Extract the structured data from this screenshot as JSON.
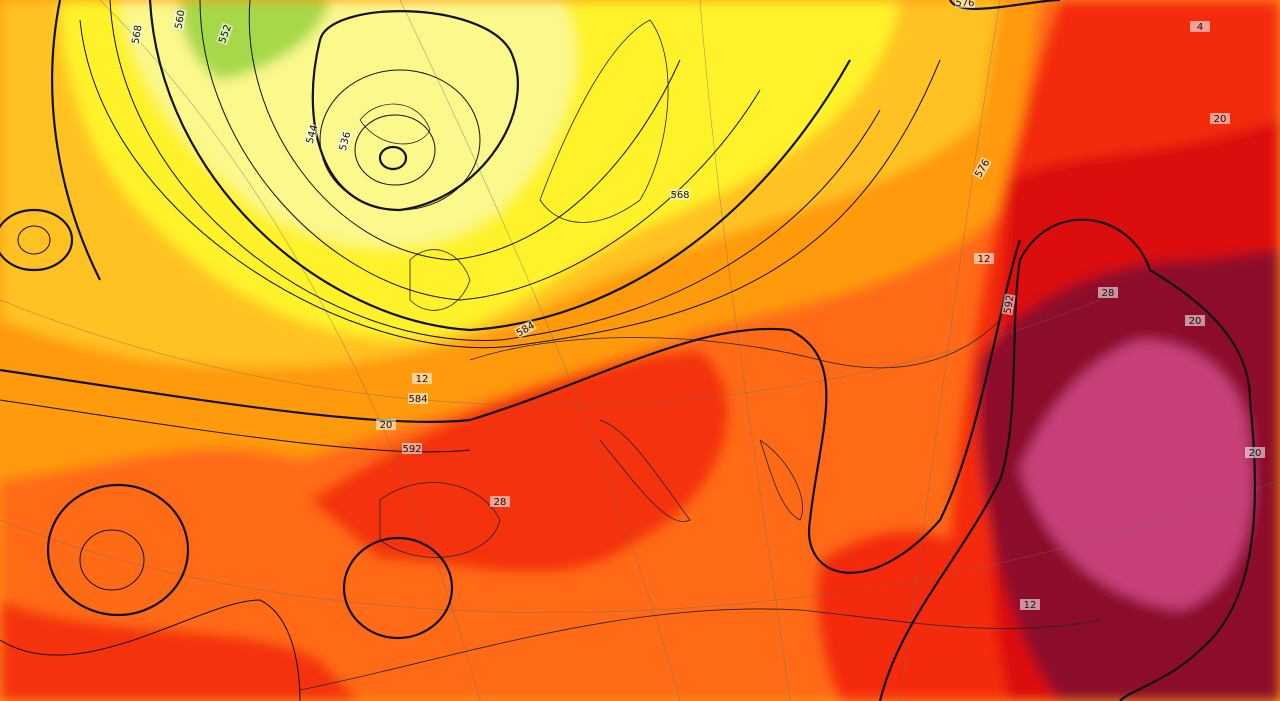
{
  "contour_labels": [
    "560",
    "568",
    "552",
    "544",
    "536",
    "576",
    "568",
    "576",
    "584",
    "592",
    "584",
    "592",
    "12",
    "20",
    "28",
    "4",
    "20",
    "12",
    "28",
    "20",
    "12",
    "20"
  ]
}
